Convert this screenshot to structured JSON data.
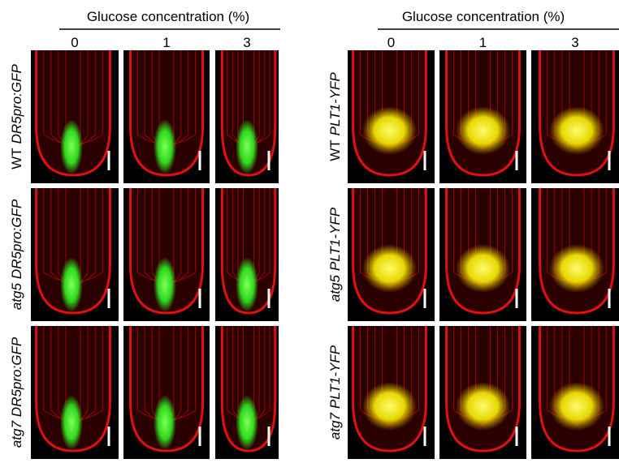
{
  "panels": [
    {
      "header": "Glucose concentration (%)",
      "columns": [
        "0",
        "1",
        "3"
      ],
      "rows": [
        [
          {
            "text": "WT"
          },
          {
            "text": "DR5pro:GFP",
            "italic": true
          }
        ],
        [
          {
            "text": "atg5",
            "italic": true
          },
          {
            "text": "DR5pro:GFP",
            "italic": true
          }
        ],
        [
          {
            "text": "atg7",
            "italic": true
          },
          {
            "text": "DR5pro:GFP",
            "italic": true
          }
        ]
      ]
    },
    {
      "header": "Glucose concentration (%)",
      "columns": [
        "0",
        "1",
        "3"
      ],
      "rows": [
        [
          {
            "text": "WT"
          },
          {
            "text": "PLT1-YFP",
            "italic": true
          }
        ],
        [
          {
            "text": "atg5",
            "italic": true
          },
          {
            "text": "PLT1-YFP",
            "italic": true
          }
        ],
        [
          {
            "text": "atg7",
            "italic": true
          },
          {
            "text": "PLT1-YFP",
            "italic": true
          }
        ]
      ]
    }
  ]
}
